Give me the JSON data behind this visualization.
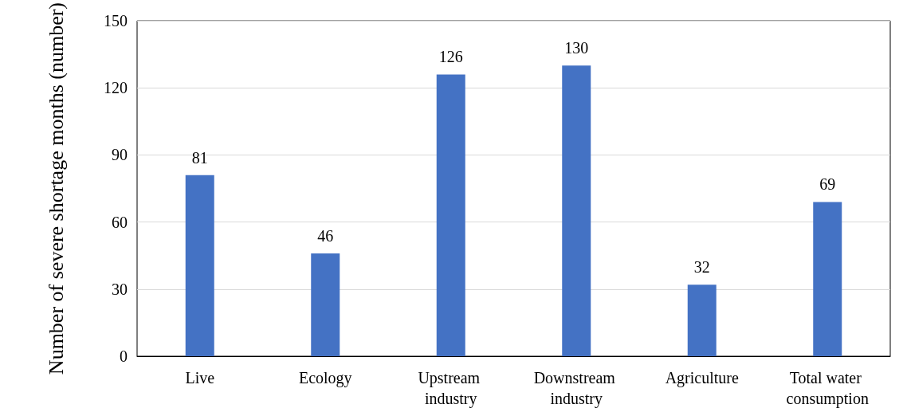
{
  "chart_data": {
    "type": "bar",
    "ylabel": "Number of severe shortage months (number)",
    "categories": [
      "Live",
      "Ecology",
      "Upstream industry",
      "Downstream industry",
      "Agriculture",
      "Total water consumption"
    ],
    "values": [
      81,
      46,
      126,
      130,
      32,
      69
    ],
    "color": "#4472c4",
    "ylim": [
      0,
      150
    ],
    "yticks": [
      0,
      30,
      60,
      90,
      120,
      150
    ],
    "grid": "y",
    "data_labels": true
  }
}
